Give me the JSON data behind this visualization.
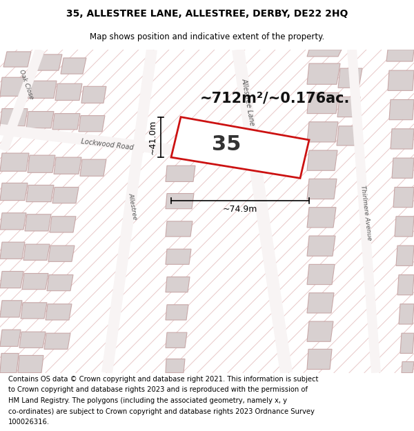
{
  "title": "35, ALLESTREE LANE, ALLESTREE, DERBY, DE22 2HQ",
  "subtitle": "Map shows position and indicative extent of the property.",
  "area_text": "~712m²/~0.176ac.",
  "plot_number": "35",
  "dim_width": "~74.9m",
  "dim_height": "~41.0m",
  "footer_lines": [
    "Contains OS data © Crown copyright and database right 2021. This information is subject",
    "to Crown copyright and database rights 2023 and is reproduced with the permission of",
    "HM Land Registry. The polygons (including the associated geometry, namely x, y",
    "co-ordinates) are subject to Crown copyright and database rights 2023 Ordnance Survey",
    "100026316."
  ],
  "map_bg": "#f2eeee",
  "building_fill": "#d8d0d0",
  "building_edge": "#c8a8a8",
  "highlight_fill": "#ffffff",
  "highlight_edge": "#cc1111",
  "hatch_color": "#e8c8c8",
  "road_color": "#f8f4f4",
  "title_fontsize": 10,
  "subtitle_fontsize": 8.5,
  "area_fontsize": 15,
  "plot_num_fontsize": 22,
  "dim_fontsize": 9,
  "footer_fontsize": 7.2
}
